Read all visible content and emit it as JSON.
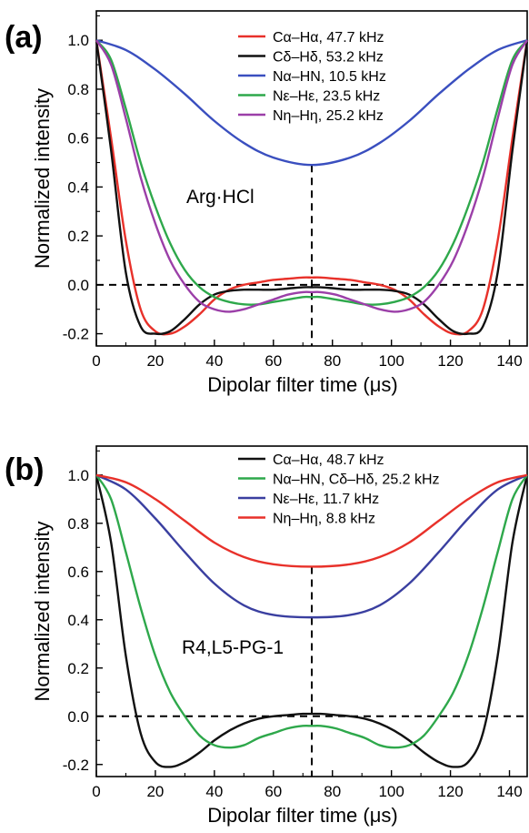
{
  "chart_data": [
    {
      "type": "line",
      "panel_label": "(a)",
      "annotation": "Arg·HCl",
      "xlabel": "Dipolar filter time (μs)",
      "ylabel": "Normalized intensity",
      "xlim": [
        0,
        146
      ],
      "ylim": [
        -0.25,
        1.12
      ],
      "xticks": [
        0,
        20,
        40,
        60,
        80,
        100,
        120,
        140
      ],
      "yticks": [
        -0.2,
        0.0,
        0.2,
        0.4,
        0.6,
        0.8,
        1.0
      ],
      "ytick_labels": [
        "-0.2",
        "0.0",
        "0.2",
        "0.4",
        "0.6",
        "0.8",
        "1.0"
      ],
      "hline_y": 0,
      "vline_x": 73,
      "legend_position": "top-right",
      "series": [
        {
          "name": "Cα–Hα, 47.7 kHz",
          "color": "#e8312a",
          "x": [
            0,
            5,
            10,
            15,
            20,
            25,
            30,
            35,
            40,
            45,
            50,
            55,
            60,
            65,
            70,
            73,
            76,
            81,
            86,
            91,
            96,
            101,
            106,
            111,
            116,
            121,
            126,
            131,
            136,
            141,
            146
          ],
          "y": [
            1.0,
            0.6,
            0.18,
            -0.1,
            -0.19,
            -0.2,
            -0.17,
            -0.12,
            -0.06,
            -0.02,
            0.0,
            0.01,
            0.02,
            0.025,
            0.03,
            0.03,
            0.03,
            0.025,
            0.02,
            0.01,
            0.0,
            -0.02,
            -0.06,
            -0.12,
            -0.17,
            -0.2,
            -0.19,
            -0.1,
            0.18,
            0.6,
            1.0
          ]
        },
        {
          "name": "Cδ–Hδ, 53.2 kHz",
          "color": "#111111",
          "x": [
            0,
            5,
            10,
            15,
            20,
            25,
            30,
            35,
            40,
            45,
            50,
            55,
            60,
            65,
            70,
            73,
            76,
            81,
            86,
            91,
            96,
            101,
            106,
            111,
            116,
            121,
            126,
            131,
            136,
            141,
            146
          ],
          "y": [
            1.0,
            0.55,
            0.05,
            -0.17,
            -0.2,
            -0.19,
            -0.14,
            -0.08,
            -0.04,
            -0.025,
            -0.02,
            -0.02,
            -0.02,
            -0.015,
            -0.01,
            -0.01,
            -0.01,
            -0.015,
            -0.02,
            -0.02,
            -0.02,
            -0.025,
            -0.04,
            -0.08,
            -0.14,
            -0.19,
            -0.2,
            -0.17,
            0.05,
            0.55,
            1.0
          ]
        },
        {
          "name": "Nα–HN, 10.5 kHz",
          "color": "#3a4fbf",
          "x": [
            0,
            10,
            20,
            30,
            40,
            50,
            60,
            73,
            86,
            96,
            106,
            116,
            126,
            136,
            146
          ],
          "y": [
            1.0,
            0.96,
            0.88,
            0.78,
            0.67,
            0.58,
            0.52,
            0.49,
            0.52,
            0.58,
            0.67,
            0.78,
            0.88,
            0.96,
            1.0
          ]
        },
        {
          "name": "Nε–Hε, 23.5 kHz",
          "color": "#2ea84b",
          "x": [
            0,
            5,
            10,
            15,
            20,
            25,
            30,
            35,
            40,
            45,
            50,
            55,
            60,
            65,
            70,
            73,
            76,
            81,
            86,
            91,
            96,
            101,
            106,
            111,
            116,
            121,
            126,
            131,
            136,
            141,
            146
          ],
          "y": [
            1.0,
            0.92,
            0.72,
            0.5,
            0.32,
            0.17,
            0.06,
            -0.01,
            -0.05,
            -0.07,
            -0.08,
            -0.08,
            -0.07,
            -0.06,
            -0.05,
            -0.05,
            -0.05,
            -0.06,
            -0.07,
            -0.08,
            -0.08,
            -0.07,
            -0.05,
            -0.01,
            0.06,
            0.17,
            0.32,
            0.5,
            0.72,
            0.92,
            1.0
          ]
        },
        {
          "name": "Nη–Hη, 25.2 kHz",
          "color": "#9b3fa8",
          "x": [
            0,
            5,
            10,
            15,
            20,
            25,
            30,
            35,
            40,
            45,
            50,
            55,
            60,
            65,
            70,
            73,
            76,
            81,
            86,
            91,
            96,
            101,
            106,
            111,
            116,
            121,
            126,
            131,
            136,
            141,
            146
          ],
          "y": [
            1.0,
            0.9,
            0.68,
            0.44,
            0.25,
            0.1,
            0.0,
            -0.07,
            -0.1,
            -0.11,
            -0.1,
            -0.08,
            -0.06,
            -0.04,
            -0.03,
            -0.03,
            -0.03,
            -0.04,
            -0.06,
            -0.08,
            -0.1,
            -0.11,
            -0.1,
            -0.07,
            0.0,
            0.1,
            0.25,
            0.44,
            0.68,
            0.9,
            1.0
          ]
        }
      ]
    },
    {
      "type": "line",
      "panel_label": "(b)",
      "annotation": "R4,L5-PG-1",
      "xlabel": "Dipolar filter time (μs)",
      "ylabel": "Normalized intensity",
      "xlim": [
        0,
        146
      ],
      "ylim": [
        -0.25,
        1.12
      ],
      "xticks": [
        0,
        20,
        40,
        60,
        80,
        100,
        120,
        140
      ],
      "yticks": [
        -0.2,
        0.0,
        0.2,
        0.4,
        0.6,
        0.8,
        1.0
      ],
      "ytick_labels": [
        "-0.2",
        "0.0",
        "0.2",
        "0.4",
        "0.6",
        "0.8",
        "1.0"
      ],
      "hline_y": 0,
      "vline_x": 73,
      "legend_position": "top-right",
      "series": [
        {
          "name": "Cα–Hα, 48.7 kHz",
          "color": "#111111",
          "x": [
            0,
            5,
            10,
            15,
            20,
            25,
            30,
            35,
            40,
            45,
            50,
            55,
            60,
            65,
            70,
            73,
            76,
            81,
            86,
            91,
            96,
            101,
            106,
            111,
            116,
            121,
            126,
            131,
            136,
            141,
            146
          ],
          "y": [
            1.0,
            0.72,
            0.25,
            -0.07,
            -0.19,
            -0.21,
            -0.19,
            -0.15,
            -0.1,
            -0.06,
            -0.03,
            -0.01,
            0.0,
            0.005,
            0.01,
            0.01,
            0.01,
            0.005,
            0.0,
            -0.01,
            -0.03,
            -0.06,
            -0.1,
            -0.15,
            -0.19,
            -0.21,
            -0.19,
            -0.07,
            0.25,
            0.72,
            1.0
          ]
        },
        {
          "name": "Nα–HN, Cδ–Hδ, 25.2 kHz",
          "color": "#2ea84b",
          "x": [
            0,
            5,
            10,
            15,
            20,
            25,
            30,
            35,
            40,
            45,
            50,
            55,
            60,
            65,
            70,
            73,
            76,
            81,
            86,
            91,
            96,
            101,
            106,
            111,
            116,
            121,
            126,
            131,
            136,
            141,
            146
          ],
          "y": [
            1.0,
            0.9,
            0.68,
            0.45,
            0.25,
            0.1,
            0.0,
            -0.08,
            -0.12,
            -0.13,
            -0.12,
            -0.09,
            -0.07,
            -0.05,
            -0.04,
            -0.04,
            -0.04,
            -0.05,
            -0.07,
            -0.09,
            -0.12,
            -0.13,
            -0.12,
            -0.08,
            0.0,
            0.1,
            0.25,
            0.45,
            0.68,
            0.9,
            1.0
          ]
        },
        {
          "name": "Nε–Hε, 11.7 kHz",
          "color": "#3a3fa0",
          "x": [
            0,
            10,
            20,
            30,
            40,
            50,
            60,
            73,
            86,
            96,
            106,
            116,
            126,
            136,
            146
          ],
          "y": [
            1.0,
            0.94,
            0.82,
            0.68,
            0.55,
            0.46,
            0.42,
            0.41,
            0.42,
            0.46,
            0.55,
            0.68,
            0.82,
            0.94,
            1.0
          ]
        },
        {
          "name": "Nη–Hη, 8.8 kHz",
          "color": "#e8312a",
          "x": [
            0,
            10,
            20,
            30,
            40,
            50,
            60,
            73,
            86,
            96,
            106,
            116,
            126,
            136,
            146
          ],
          "y": [
            1.0,
            0.97,
            0.9,
            0.81,
            0.72,
            0.66,
            0.63,
            0.62,
            0.63,
            0.66,
            0.72,
            0.81,
            0.9,
            0.97,
            1.0
          ]
        }
      ]
    }
  ]
}
